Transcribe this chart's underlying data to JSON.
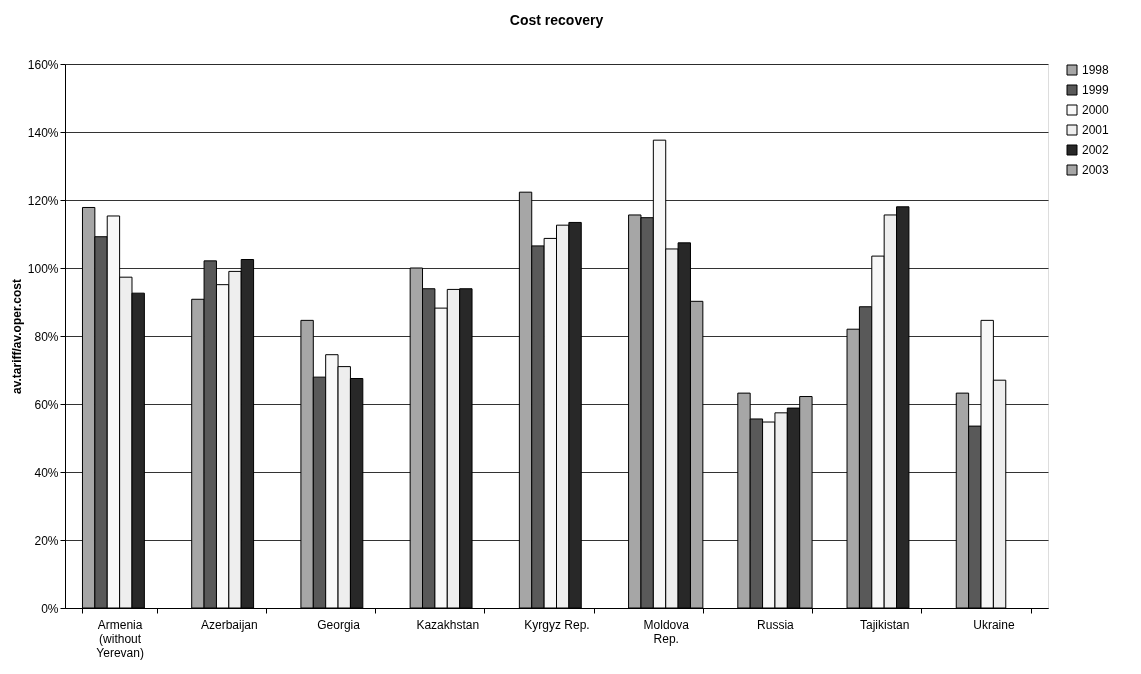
{
  "chart_data": {
    "type": "bar",
    "title": "Cost recovery",
    "ylabel": "av.tariff/av.oper.cost",
    "categories": [
      "Armenia (without Yerevan)",
      "Azerbaijan",
      "Georgia",
      "Kazakhstan",
      "Kyrgyz Rep.",
      "Moldova Rep.",
      "Russia",
      "Tajikistan",
      "Ukraine"
    ],
    "series": [
      {
        "name": "1998",
        "color": "#a6a6a6",
        "values": [
          117.8,
          90.8,
          84.6,
          100,
          122.3,
          115.6,
          63.2,
          82.0,
          63.2
        ]
      },
      {
        "name": "1999",
        "color": "#595959",
        "values": [
          109.2,
          102.1,
          67.9,
          93.9,
          106.5,
          114.8,
          55.6,
          88.6,
          53.5
        ]
      },
      {
        "name": "2000",
        "color": "#f8f8f8",
        "values": [
          115.3,
          95.1,
          74.5,
          88.2,
          108.7,
          137.6,
          54.7,
          103.5,
          84.6
        ]
      },
      {
        "name": "2001",
        "color": "#eeeeee",
        "values": [
          97.3,
          99.0,
          71.0,
          93.7,
          112.6,
          105.6,
          57.4,
          115.6,
          67.0
        ]
      },
      {
        "name": "2002",
        "color": "#282828",
        "values": [
          92.6,
          102.5,
          67.5,
          93.9,
          113.4,
          107.4,
          58.8,
          118.0,
          null
        ]
      },
      {
        "name": "2003",
        "color": "#a6a6a6",
        "values": [
          null,
          null,
          null,
          null,
          null,
          90.2,
          62.2,
          null,
          null
        ]
      }
    ],
    "ylim": [
      0,
      160
    ],
    "yticks": [
      {
        "value": 0,
        "label": "0%"
      },
      {
        "value": 20,
        "label": "20%"
      },
      {
        "value": 40,
        "label": "40%"
      },
      {
        "value": 60,
        "label": "60%"
      },
      {
        "value": 80,
        "label": "80%"
      },
      {
        "value": 100,
        "label": "100%"
      },
      {
        "value": 120,
        "label": "120%"
      },
      {
        "value": 140,
        "label": "140%"
      },
      {
        "value": 160,
        "label": "160%"
      }
    ],
    "grid": "y",
    "legend": "right"
  }
}
